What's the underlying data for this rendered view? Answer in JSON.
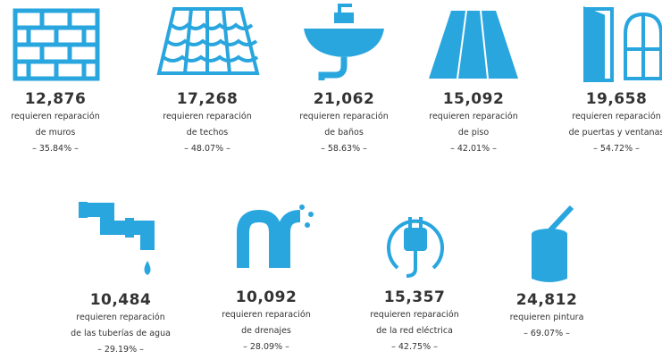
{
  "items": [
    {
      "number": "12,876",
      "lines": [
        "requieren reparación",
        "de muros"
      ],
      "percent": "– 35.84% –"
    },
    {
      "number": "17,268",
      "lines": [
        "requieren reparación",
        "de techos"
      ],
      "percent": "– 48.07% –"
    },
    {
      "number": "21,062",
      "lines": [
        "requieren reparación",
        "de baños"
      ],
      "percent": "– 58.63% –"
    },
    {
      "number": "15,092",
      "lines": [
        "requieren reparación",
        "de piso"
      ],
      "percent": "– 42.01% –"
    },
    {
      "number": "19,658",
      "lines": [
        "requieren reparación",
        "de puertas y ventanas"
      ],
      "percent": "– 54.72% –"
    },
    {
      "number": "10,484",
      "lines": [
        "requieren reparación",
        "de las tuberías de agua"
      ],
      "percent": "– 29.19% –"
    },
    {
      "number": "10,092",
      "lines": [
        "requieren reparación",
        "de drenajes"
      ],
      "percent": "– 28.09% –"
    },
    {
      "number": "15,357",
      "lines": [
        "requieren reparación",
        "de la red eléctrica"
      ],
      "percent": "– 42.75% –"
    },
    {
      "number": "24,812",
      "lines": [
        "requieren pintura"
      ],
      "percent": "– 69.07% –"
    }
  ]
}
